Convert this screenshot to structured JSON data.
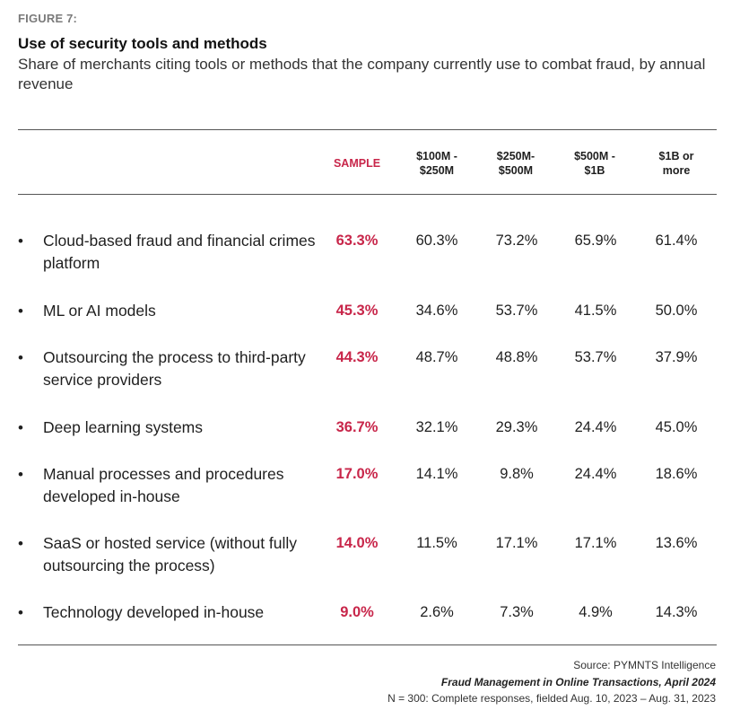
{
  "figure_label": "FIGURE 7:",
  "chart_data": {
    "type": "table",
    "title": "Use of security tools and methods",
    "subtitle": "Share of merchants citing tools or methods that the company currently use to combat fraud, by annual revenue",
    "columns": [
      "SAMPLE",
      "$100M - $250M",
      "$250M- $500M",
      "$500M - $1B",
      "$1B or more"
    ],
    "rows": [
      {
        "label": "Cloud-based fraud and financial crimes platform",
        "values": [
          "63.3%",
          "60.3%",
          "73.2%",
          "65.9%",
          "61.4%"
        ]
      },
      {
        "label": "ML or AI models",
        "values": [
          "45.3%",
          "34.6%",
          "53.7%",
          "41.5%",
          "50.0%"
        ]
      },
      {
        "label": "Outsourcing the process to third-party service providers",
        "values": [
          "44.3%",
          "48.7%",
          "48.8%",
          "53.7%",
          "37.9%"
        ]
      },
      {
        "label": "Deep learning systems",
        "values": [
          "36.7%",
          "32.1%",
          "29.3%",
          "24.4%",
          "45.0%"
        ]
      },
      {
        "label": "Manual processes and procedures developed in-house",
        "values": [
          "17.0%",
          "14.1%",
          "9.8%",
          "24.4%",
          "18.6%"
        ]
      },
      {
        "label": "SaaS or hosted service (without fully outsourcing the process)",
        "values": [
          "14.0%",
          "11.5%",
          "17.1%",
          "17.1%",
          "13.6%"
        ]
      },
      {
        "label": "Technology developed in-house",
        "values": [
          "9.0%",
          "2.6%",
          "7.3%",
          "4.9%",
          "14.3%"
        ]
      }
    ]
  },
  "accent_color": "#c8264a",
  "bullet": "•",
  "footer": {
    "source": "Source: PYMNTS Intelligence",
    "publication": "Fraud Management in Online Transactions, April 2024",
    "note": "N = 300: Complete responses, fielded Aug. 10, 2023 – Aug. 31, 2023"
  }
}
